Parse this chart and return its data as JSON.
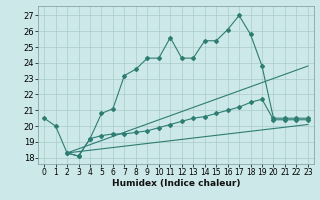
{
  "xlabel": "Humidex (Indice chaleur)",
  "bg_color": "#cce8e8",
  "grid_color": "#aacccc",
  "line_color": "#2e7d72",
  "xlim": [
    -0.5,
    23.5
  ],
  "ylim": [
    17.6,
    27.6
  ],
  "yticks": [
    18,
    19,
    20,
    21,
    22,
    23,
    24,
    25,
    26,
    27
  ],
  "xticks": [
    0,
    1,
    2,
    3,
    4,
    5,
    6,
    7,
    8,
    9,
    10,
    11,
    12,
    13,
    14,
    15,
    16,
    17,
    18,
    19,
    20,
    21,
    22,
    23
  ],
  "line1_x": [
    0,
    1,
    2,
    3,
    4,
    5,
    6,
    7,
    8,
    9,
    10,
    11,
    12,
    13,
    14,
    15,
    16,
    17,
    18,
    19,
    20,
    21,
    22,
    23
  ],
  "line1_y": [
    20.5,
    20.0,
    18.3,
    18.1,
    19.2,
    20.8,
    21.1,
    23.2,
    23.6,
    24.3,
    24.3,
    25.6,
    24.3,
    24.3,
    25.4,
    25.4,
    26.1,
    27.0,
    25.8,
    23.8,
    20.5,
    20.5,
    20.5,
    20.5
  ],
  "line2_x": [
    2,
    3,
    4,
    5,
    6,
    7,
    8,
    9,
    10,
    11,
    12,
    13,
    14,
    15,
    16,
    17,
    18,
    19,
    20,
    21,
    22,
    23
  ],
  "line2_y": [
    18.3,
    18.1,
    19.2,
    19.4,
    19.5,
    19.5,
    19.6,
    19.7,
    19.9,
    20.1,
    20.3,
    20.5,
    20.6,
    20.8,
    21.0,
    21.2,
    21.5,
    21.7,
    20.4,
    20.4,
    20.4,
    20.4
  ],
  "line3_x": [
    2,
    23
  ],
  "line3_y": [
    18.3,
    23.8
  ],
  "line4_x": [
    2,
    23
  ],
  "line4_y": [
    18.3,
    20.1
  ]
}
